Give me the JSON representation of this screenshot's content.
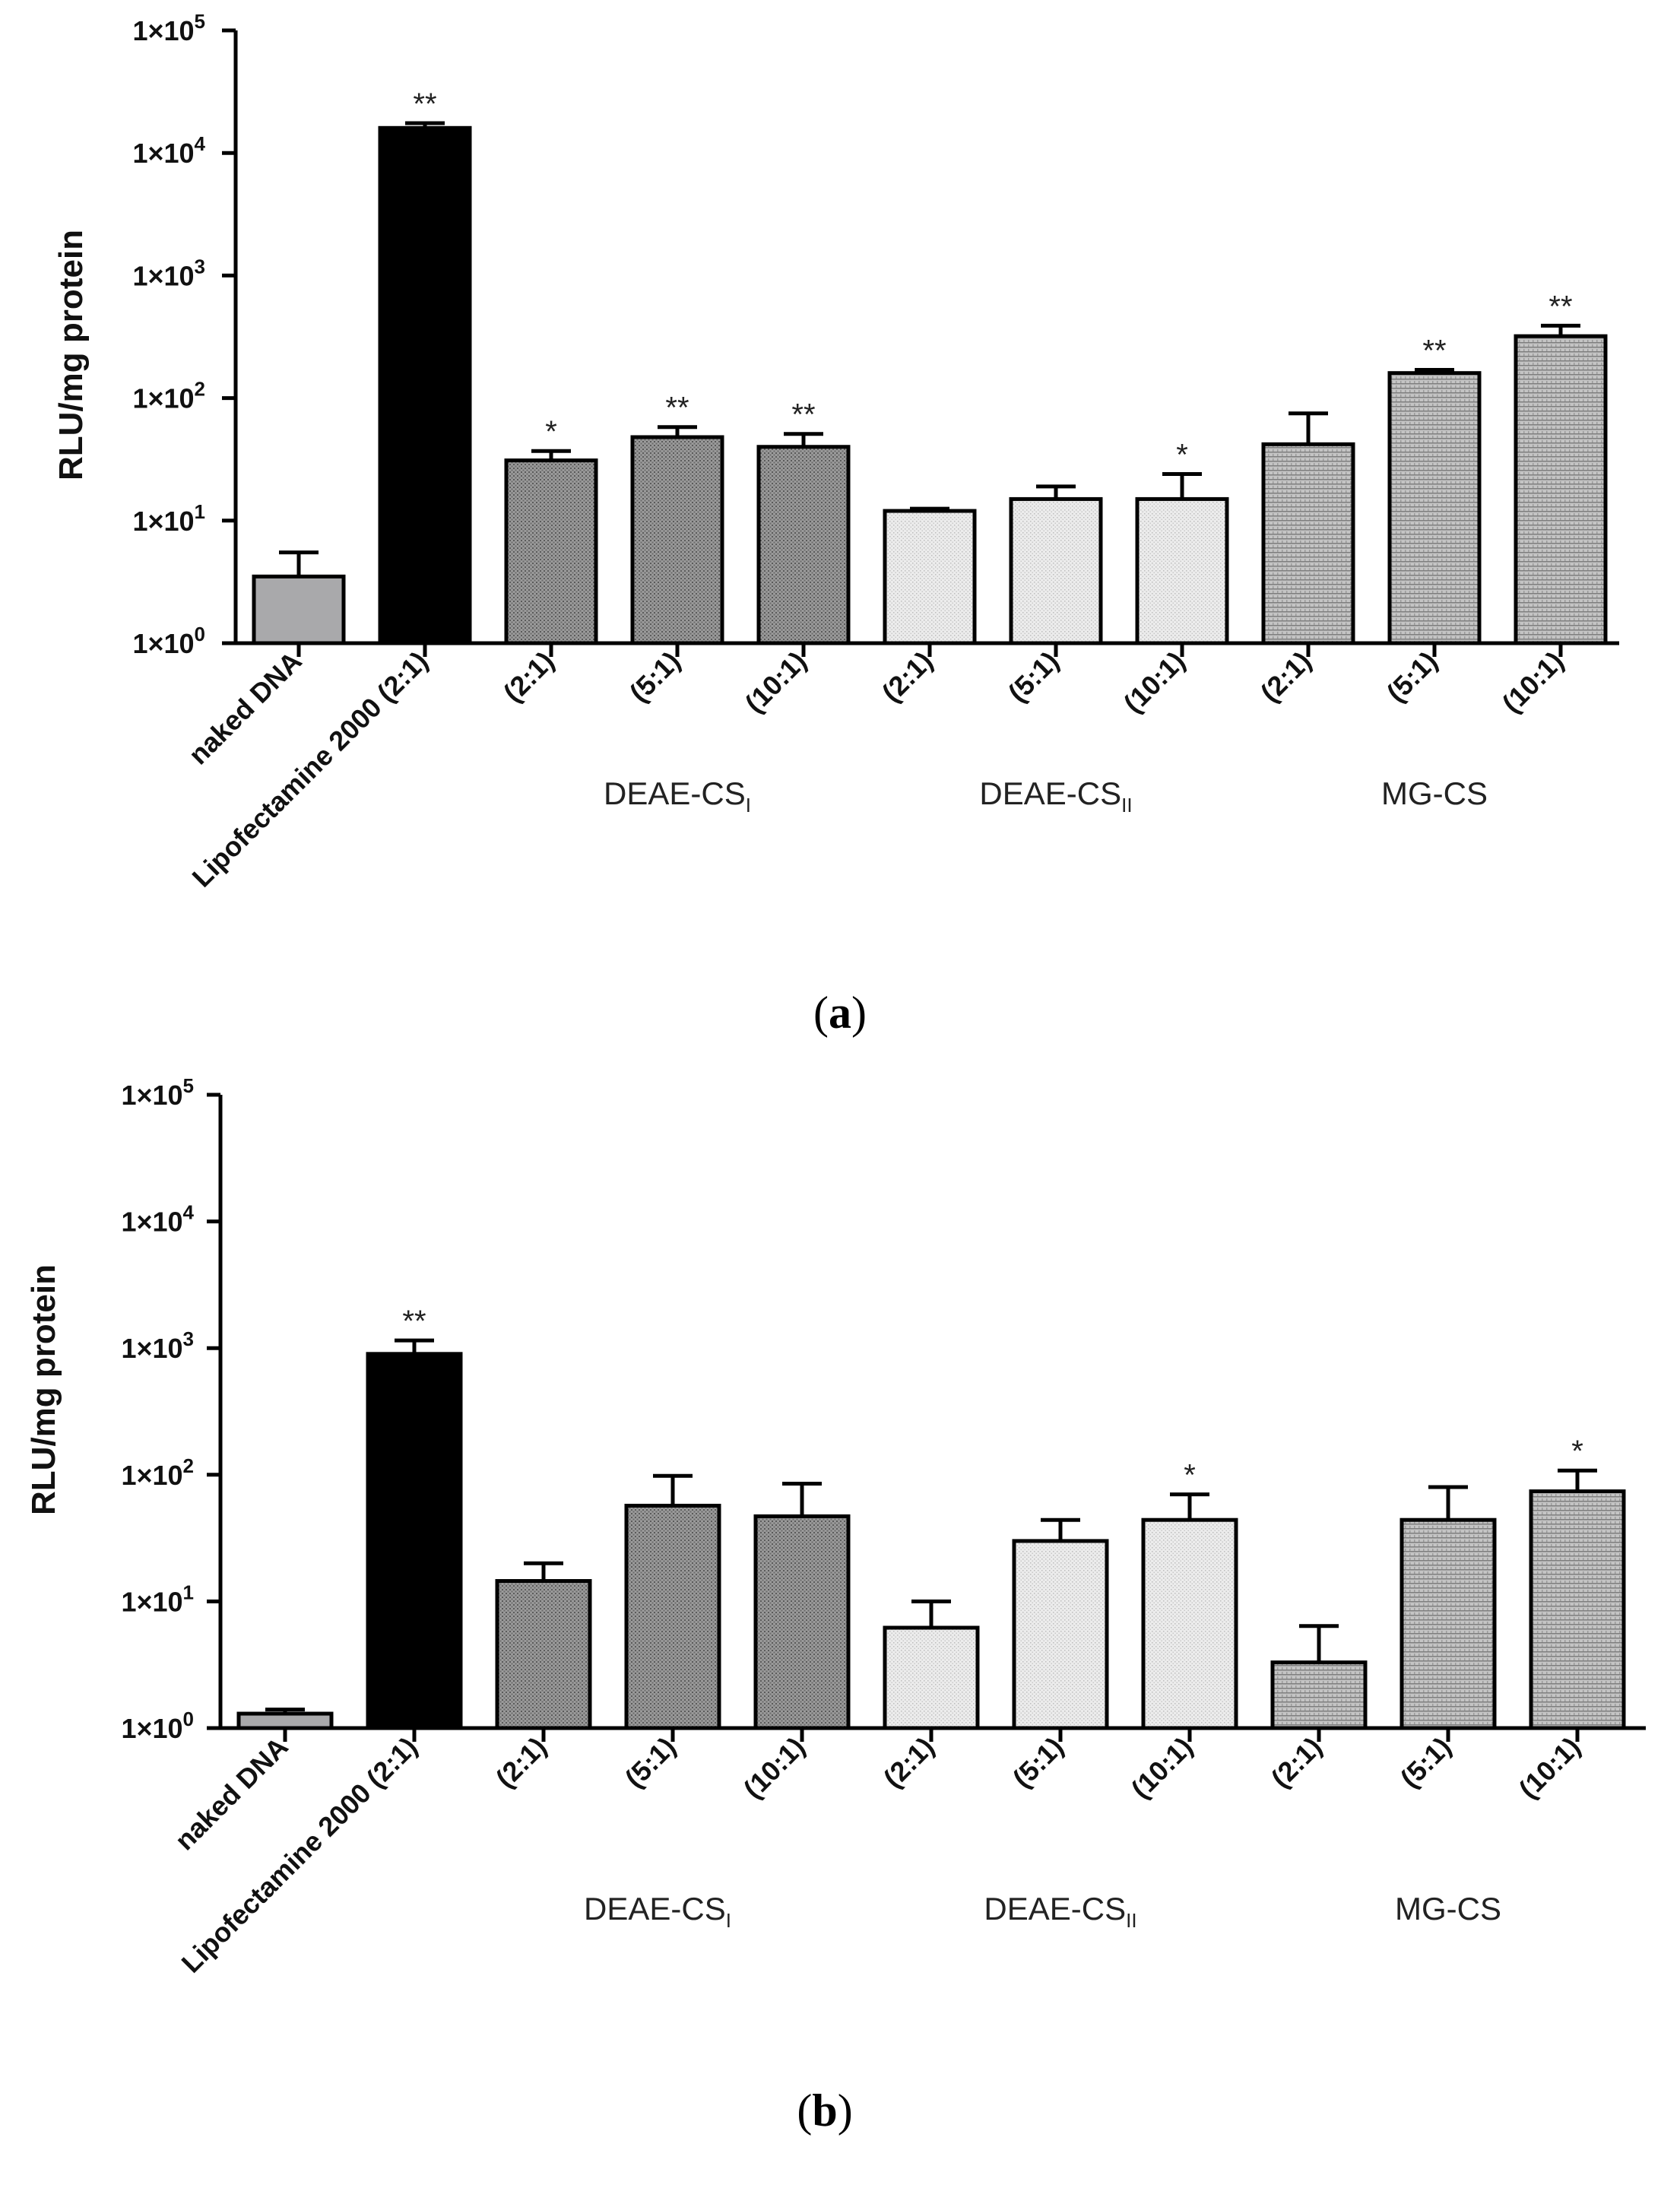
{
  "chart_data": [
    {
      "panel_label": "(a)",
      "panel_letter": "a",
      "type": "bar",
      "scale": "log",
      "ylabel": "RLU/mg protein",
      "ylim": [
        1,
        100000
      ],
      "yticks": [
        {
          "value": 1,
          "base": "1×10",
          "exp": "0"
        },
        {
          "value": 10,
          "base": "1×10",
          "exp": "1"
        },
        {
          "value": 100,
          "base": "1×10",
          "exp": "2"
        },
        {
          "value": 1000,
          "base": "1×10",
          "exp": "3"
        },
        {
          "value": 10000,
          "base": "1×10",
          "exp": "4"
        },
        {
          "value": 100000,
          "base": "1×10",
          "exp": "5"
        }
      ],
      "categories": [
        "naked DNA",
        "Lipofectamine 2000 (2:1)",
        "(2:1)",
        "(5:1)",
        "(10:1)",
        "(2:1)",
        "(5:1)",
        "(10:1)",
        "(2:1)",
        "(5:1)",
        "(10:1)"
      ],
      "values": [
        3.5,
        16000,
        31,
        48,
        40,
        12,
        15,
        15,
        42,
        160,
        320
      ],
      "error_upper": [
        5.5,
        17500,
        37,
        58,
        51,
        12.5,
        19,
        24,
        75,
        170,
        390
      ],
      "significance": [
        "",
        "**",
        "*",
        "**",
        "**",
        "",
        "",
        "*",
        "",
        "**",
        "**"
      ],
      "groups": [
        {
          "base": "DEAE-CS",
          "sub": "I",
          "categories": [
            2,
            3,
            4
          ]
        },
        {
          "base": "DEAE-CS",
          "sub": "II",
          "categories": [
            5,
            6,
            7
          ]
        },
        {
          "base": "MG-CS",
          "sub": "",
          "categories": [
            8,
            9,
            10
          ]
        }
      ]
    },
    {
      "panel_label": "(b)",
      "panel_letter": "b",
      "type": "bar",
      "scale": "log",
      "ylabel": "RLU/mg protein",
      "ylim": [
        1,
        100000
      ],
      "yticks": [
        {
          "value": 1,
          "base": "1×10",
          "exp": "0"
        },
        {
          "value": 10,
          "base": "1×10",
          "exp": "1"
        },
        {
          "value": 100,
          "base": "1×10",
          "exp": "2"
        },
        {
          "value": 1000,
          "base": "1×10",
          "exp": "3"
        },
        {
          "value": 10000,
          "base": "1×10",
          "exp": "4"
        },
        {
          "value": 100000,
          "base": "1×10",
          "exp": "5"
        }
      ],
      "categories": [
        "naked DNA",
        "Lipofectamine 2000 (2:1)",
        "(2:1)",
        "(5:1)",
        "(10:1)",
        "(2:1)",
        "(5:1)",
        "(10:1)",
        "(2:1)",
        "(5:1)",
        "(10:1)"
      ],
      "values": [
        1.3,
        900,
        14.5,
        57,
        47,
        6.2,
        30,
        44,
        3.3,
        44,
        74
      ],
      "error_upper": [
        1.4,
        1150,
        20,
        98,
        85,
        10,
        44,
        70,
        6.4,
        80,
        108
      ],
      "significance": [
        "",
        "**",
        "",
        "",
        "",
        "",
        "",
        "*",
        "",
        "",
        "*"
      ],
      "groups": [
        {
          "base": "DEAE-CS",
          "sub": "I",
          "categories": [
            2,
            3,
            4
          ]
        },
        {
          "base": "DEAE-CS",
          "sub": "II",
          "categories": [
            5,
            6,
            7
          ]
        },
        {
          "base": "MG-CS",
          "sub": "",
          "categories": [
            8,
            9,
            10
          ]
        }
      ]
    }
  ],
  "colors": {
    "naked": "#a9a9ab",
    "lipofectamine": "#000000",
    "deae1": "#8f8f8f",
    "deae2": "#e7e7e7",
    "mgcs": "#b6b6b6",
    "axis": "#000000"
  }
}
